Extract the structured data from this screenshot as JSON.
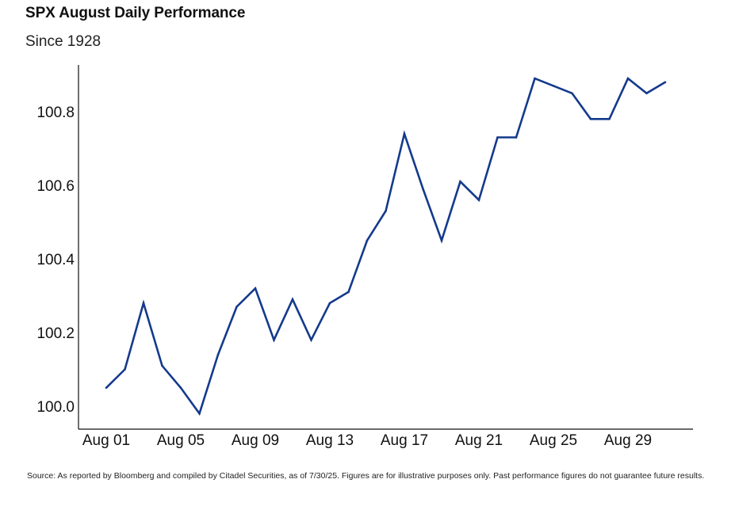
{
  "header": {
    "title": "SPX August Daily Performance",
    "subtitle": "Since 1928"
  },
  "footer": {
    "source": "Source: As reported by Bloomberg and compiled by Citadel Securities, as of 7/30/25. Figures are for illustrative purposes only. Past performance figures do not guarantee future results."
  },
  "colors": {
    "line": "#143a8c",
    "axis": "#111111"
  },
  "chart_data": {
    "type": "line",
    "title": "SPX August Daily Performance",
    "subtitle": "Since 1928",
    "xlabel": "",
    "ylabel": "",
    "grid": false,
    "legend": "none",
    "x": [
      "Aug 01",
      "Aug 02",
      "Aug 03",
      "Aug 04",
      "Aug 05",
      "Aug 06",
      "Aug 07",
      "Aug 08",
      "Aug 09",
      "Aug 10",
      "Aug 11",
      "Aug 12",
      "Aug 13",
      "Aug 14",
      "Aug 15",
      "Aug 16",
      "Aug 17",
      "Aug 18",
      "Aug 19",
      "Aug 20",
      "Aug 21",
      "Aug 22",
      "Aug 23",
      "Aug 24",
      "Aug 25",
      "Aug 26",
      "Aug 27",
      "Aug 28",
      "Aug 29",
      "Aug 30",
      "Aug 31"
    ],
    "x_ticks": [
      "Aug 01",
      "Aug 05",
      "Aug 09",
      "Aug 13",
      "Aug 17",
      "Aug 21",
      "Aug 25",
      "Aug 29"
    ],
    "series": [
      {
        "values": [
          100.05,
          100.1,
          100.28,
          100.11,
          100.05,
          99.98,
          100.14,
          100.27,
          100.32,
          100.18,
          100.29,
          100.18,
          100.28,
          100.31,
          100.45,
          100.53,
          100.74,
          100.59,
          100.45,
          100.61,
          100.56,
          100.73,
          100.73,
          100.89,
          100.87,
          100.85,
          100.78,
          100.78,
          100.89,
          100.85,
          100.88
        ]
      }
    ],
    "y_ticks": [
      100.0,
      100.2,
      100.4,
      100.6,
      100.8
    ],
    "ylim": [
      99.98,
      100.91
    ]
  }
}
